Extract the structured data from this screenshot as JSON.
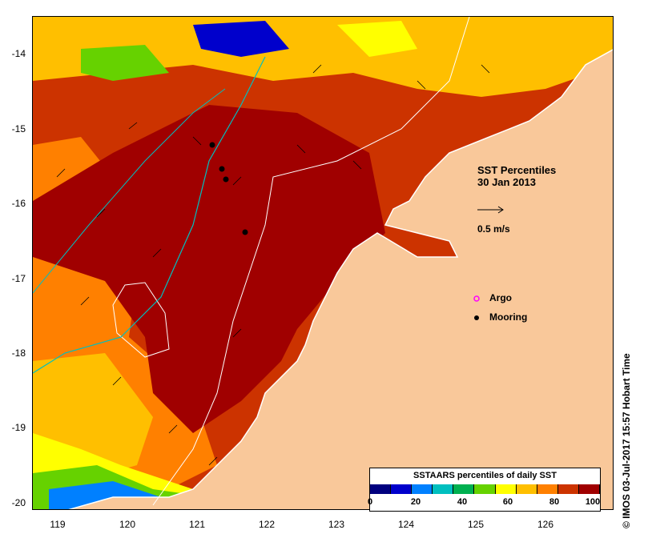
{
  "title": "SST Percentiles",
  "date": "30 Jan 2013",
  "vector_scale_label": "0.5 m/s",
  "legend_items": [
    {
      "label": "Argo",
      "color": "#ff00ff"
    },
    {
      "label": "Mooring",
      "color": "#000000"
    }
  ],
  "credit": "© IMOS 03-Jul-2017 15:57 Hobart Time",
  "colorbar": {
    "title": "SSTAARS percentiles of daily SST",
    "ticks": [
      "0",
      "20",
      "40",
      "60",
      "80",
      "100"
    ],
    "colors": [
      "#00007f",
      "#0000cc",
      "#0080ff",
      "#00bfbf",
      "#00b050",
      "#66d200",
      "#ffff00",
      "#ffbf00",
      "#ff8000",
      "#cc3300",
      "#a00000"
    ]
  },
  "axes": {
    "x_ticks": [
      "119",
      "120",
      "121",
      "122",
      "123",
      "124",
      "125",
      "126"
    ],
    "y_ticks": [
      "-14",
      "-15",
      "-16",
      "-17",
      "-18",
      "-19",
      "-20"
    ]
  },
  "mooring_positions": [
    {
      "lon": 121.1,
      "lat": -15.22
    },
    {
      "lon": 121.2,
      "lat": -15.55
    },
    {
      "lon": 121.25,
      "lat": -15.68
    },
    {
      "lon": 121.55,
      "lat": -16.4
    }
  ],
  "colors": {
    "land": "#f9c89a",
    "ocean_hot": "#a00000"
  }
}
